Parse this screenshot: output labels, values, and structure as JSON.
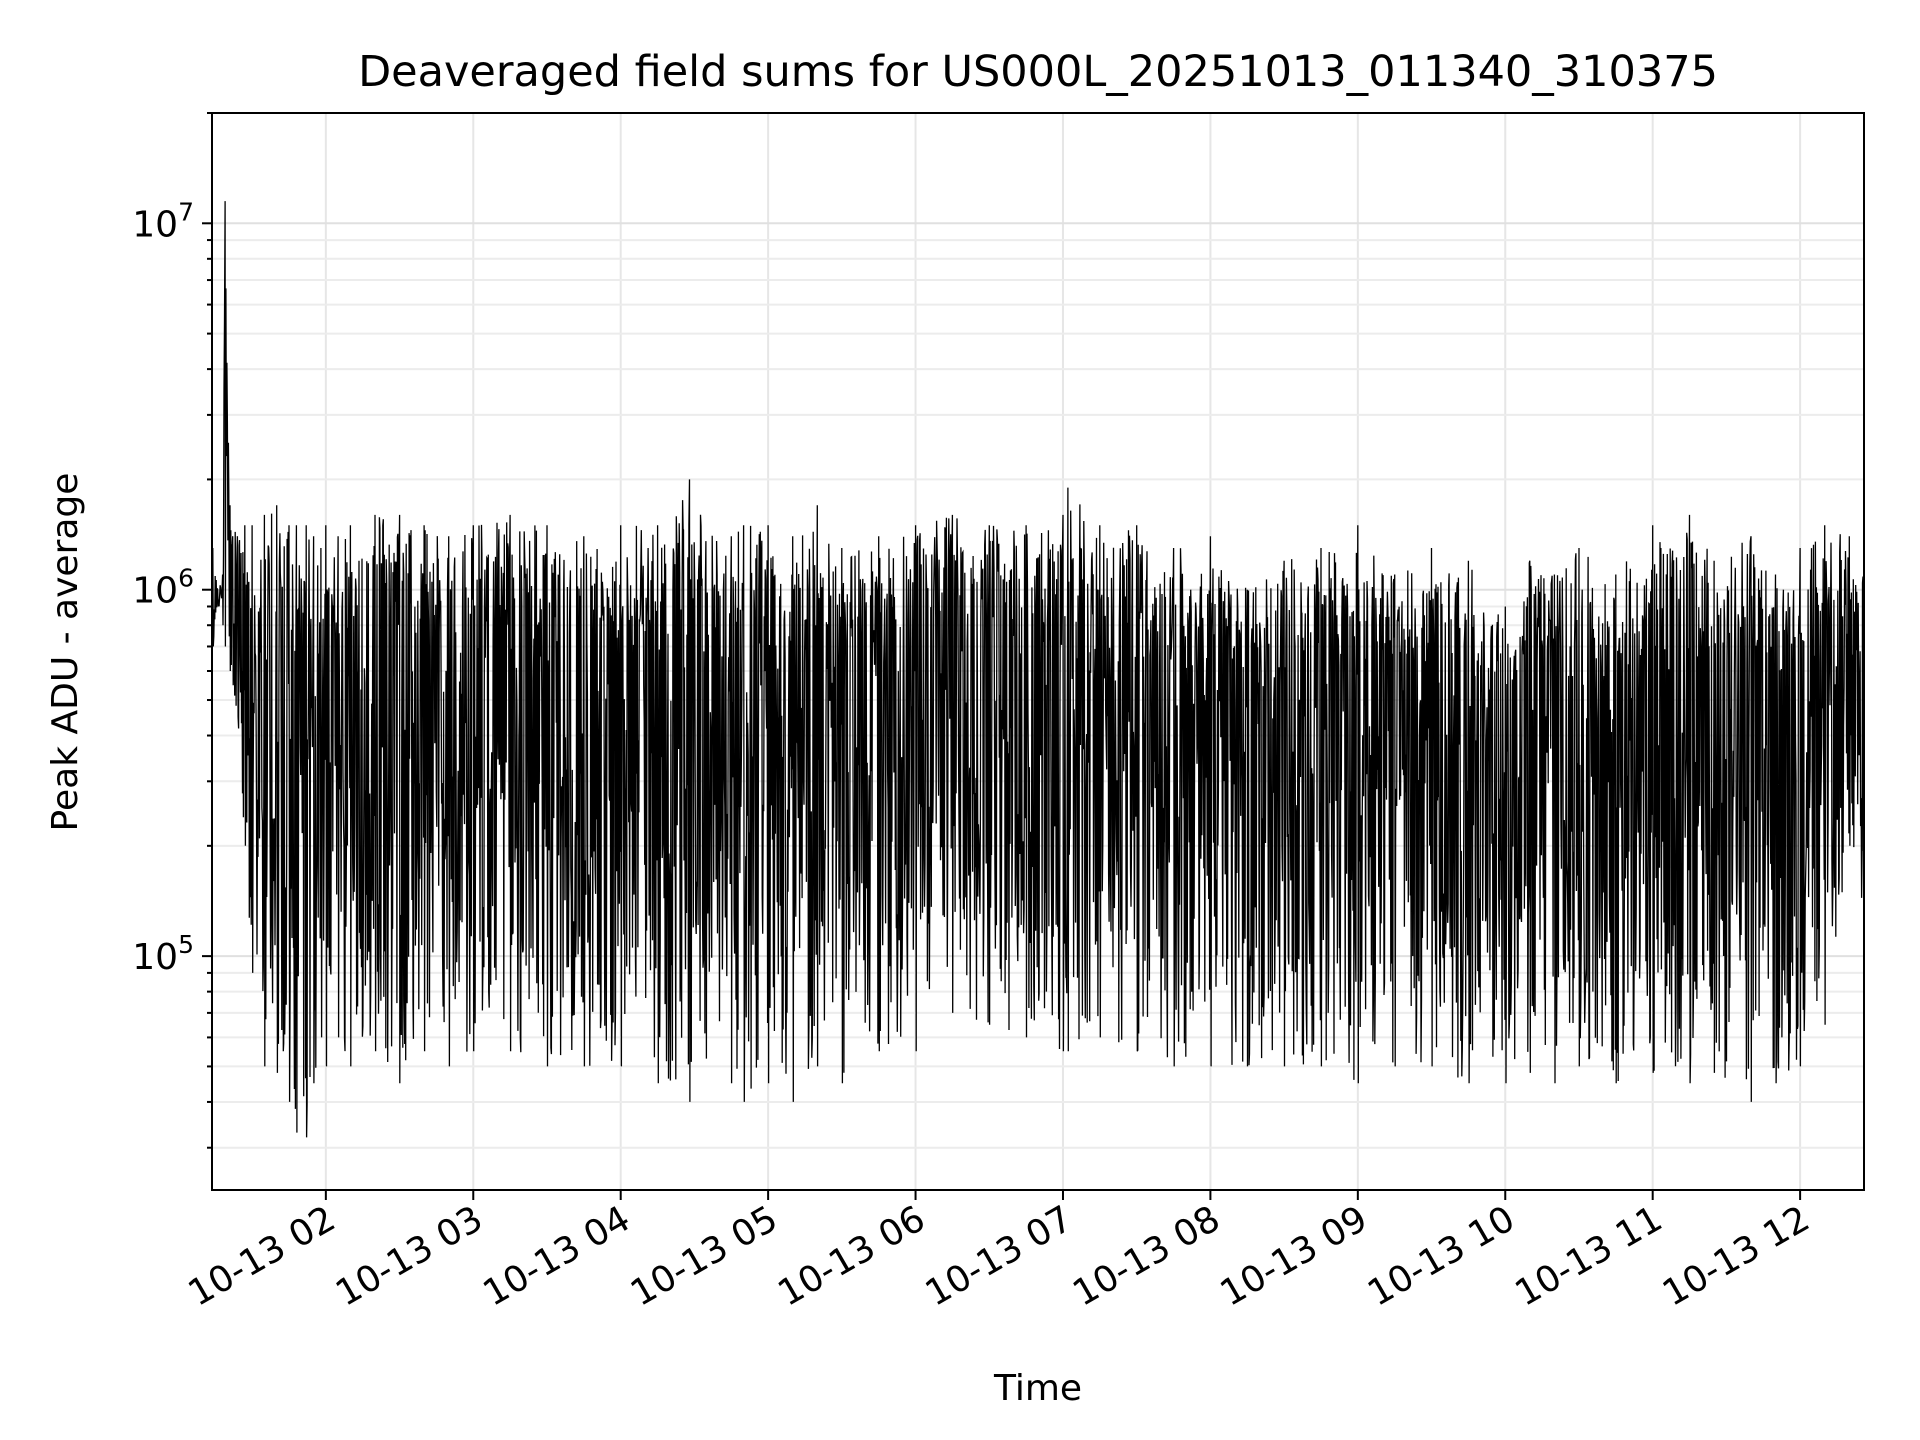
{
  "chart_data": {
    "type": "line",
    "title": "Deaveraged field sums for US000L_20251013_011340_310375",
    "xlabel": "Time",
    "ylabel": "Peak ADU - average",
    "yscale": "log",
    "ylim": [
      23000,
      20000000
    ],
    "xlim": [
      "10-13 01:13:40",
      "10-13 12:26:00"
    ],
    "grid": true,
    "line_color": "#000000",
    "x_ticks": [
      "10-13 02",
      "10-13 03",
      "10-13 04",
      "10-13 05",
      "10-13 06",
      "10-13 07",
      "10-13 08",
      "10-13 09",
      "10-13 10",
      "10-13 11",
      "10-13 12"
    ],
    "y_ticks": [
      {
        "base": "10",
        "exp": "5",
        "value": 100000
      },
      {
        "base": "10",
        "exp": "6",
        "value": 1000000
      },
      {
        "base": "10",
        "exp": "7",
        "value": 10000000
      }
    ],
    "series": [
      {
        "x": [
          "10-13 01:14",
          "10-13 01:16",
          "10-13 01:18",
          "10-13 01:19",
          "10-13 01:21",
          "10-13 01:24",
          "10-13 01:27",
          "10-13 01:30",
          "10-13 01:35",
          "10-13 01:40",
          "10-13 01:45",
          "10-13 01:48",
          "10-13 01:52",
          "10-13 01:55",
          "10-13 01:58",
          "10-13 02:00",
          "10-13 02:05",
          "10-13 02:10",
          "10-13 02:20",
          "10-13 02:30",
          "10-13 02:40",
          "10-13 02:50",
          "10-13 03:00",
          "10-13 03:15",
          "10-13 03:30",
          "10-13 03:45",
          "10-13 04:00",
          "10-13 04:15",
          "10-13 04:28",
          "10-13 04:45",
          "10-13 04:50",
          "10-13 05:00",
          "10-13 05:10",
          "10-13 05:20",
          "10-13 05:30",
          "10-13 05:45",
          "10-13 06:00",
          "10-13 06:15",
          "10-13 06:30",
          "10-13 06:45",
          "10-13 07:00",
          "10-13 07:02",
          "10-13 07:15",
          "10-13 07:30",
          "10-13 07:45",
          "10-13 08:00",
          "10-13 08:15",
          "10-13 08:30",
          "10-13 08:45",
          "10-13 09:00",
          "10-13 09:15",
          "10-13 09:30",
          "10-13 09:45",
          "10-13 10:00",
          "10-13 10:10",
          "10-13 10:20",
          "10-13 10:30",
          "10-13 10:45",
          "10-13 11:00",
          "10-13 11:15",
          "10-13 11:25",
          "10-13 11:40",
          "10-13 11:50",
          "10-13 12:00",
          "10-13 12:10",
          "10-13 12:20",
          "10-13 12:26"
        ],
        "peak": [
          1300000,
          1000000,
          1100000,
          11500000,
          1700000,
          1400000,
          1500000,
          1500000,
          1600000,
          1700000,
          1500000,
          1500000,
          1500000,
          1400000,
          1300000,
          1500000,
          1400000,
          1500000,
          1600000,
          1600000,
          1500000,
          1400000,
          1500000,
          1600000,
          1500000,
          1400000,
          1500000,
          1500000,
          2000000,
          1400000,
          1500000,
          1500000,
          1400000,
          1700000,
          1300000,
          1400000,
          1500000,
          1600000,
          1500000,
          1500000,
          1600000,
          1900000,
          1500000,
          1500000,
          1300000,
          1400000,
          1000000,
          1200000,
          1300000,
          1500000,
          1100000,
          1300000,
          1200000,
          900000,
          1200000,
          1100000,
          1300000,
          1100000,
          1500000,
          1600000,
          1200000,
          1400000,
          1100000,
          1300000,
          1500000,
          1400000,
          1200000
        ],
        "trough": [
          700000,
          900000,
          800000,
          700000,
          600000,
          450000,
          200000,
          90000,
          50000,
          48000,
          40000,
          33000,
          32000,
          45000,
          60000,
          50000,
          60000,
          50000,
          55000,
          45000,
          55000,
          50000,
          55000,
          55000,
          50000,
          50000,
          50000,
          45000,
          40000,
          45000,
          40000,
          45000,
          40000,
          50000,
          45000,
          55000,
          55000,
          70000,
          65000,
          60000,
          55000,
          55000,
          60000,
          55000,
          50000,
          50000,
          50000,
          50000,
          50000,
          45000,
          50000,
          50000,
          45000,
          45000,
          48000,
          45000,
          50000,
          45000,
          48000,
          45000,
          48000,
          40000,
          45000,
          50000,
          65000,
          200000,
          120000
        ]
      }
    ]
  }
}
